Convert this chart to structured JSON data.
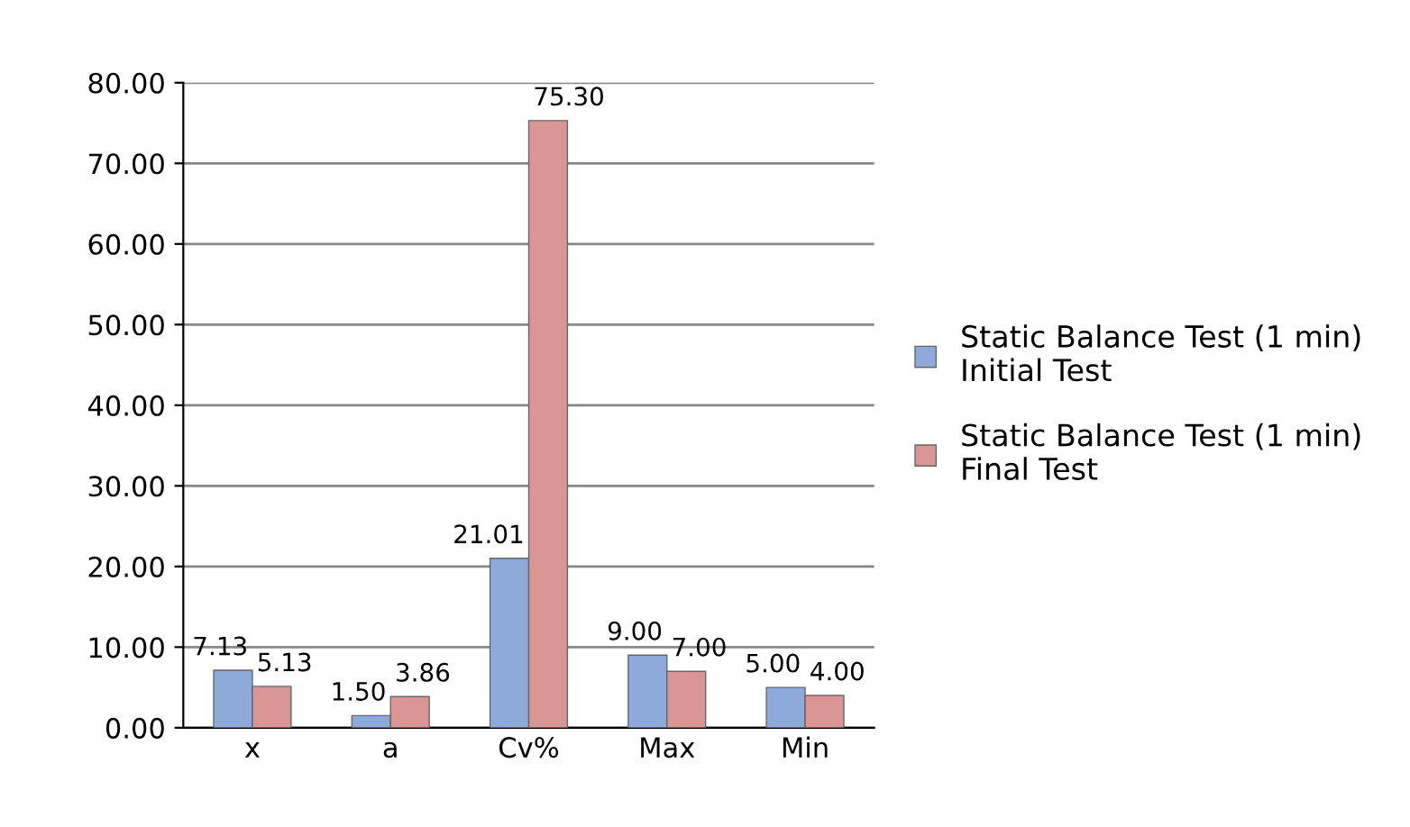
{
  "chart_data": {
    "type": "bar",
    "categories": [
      "x",
      "a",
      "Cv%",
      "Max",
      "Min"
    ],
    "series": [
      {
        "name": "Static Balance Test (1 min)\nInitial Test",
        "color": "#8eaadb",
        "values": [
          7.13,
          1.5,
          21.01,
          9.0,
          5.0
        ],
        "value_labels": [
          "7.13",
          "1.50",
          "21.01",
          "9.00",
          "5.00"
        ]
      },
      {
        "name": "Static Balance Test (1 min)\nFinal Test",
        "color": "#d99694",
        "values": [
          5.13,
          3.86,
          75.3,
          7.0,
          4.0
        ],
        "value_labels": [
          "5.13",
          "3.86",
          "75.30",
          "7.00",
          "4.00"
        ]
      }
    ],
    "ylim": [
      0,
      80
    ],
    "yticks": [
      {
        "value": 0,
        "label": "0.00"
      },
      {
        "value": 10,
        "label": "10.00"
      },
      {
        "value": 20,
        "label": "20.00"
      },
      {
        "value": 30,
        "label": "30.00"
      },
      {
        "value": 40,
        "label": "40.00"
      },
      {
        "value": 50,
        "label": "50.00"
      },
      {
        "value": 60,
        "label": "60.00"
      },
      {
        "value": 70,
        "label": "70.00"
      },
      {
        "value": 80,
        "label": "80.00"
      }
    ],
    "grid": "y",
    "legend": "right"
  }
}
